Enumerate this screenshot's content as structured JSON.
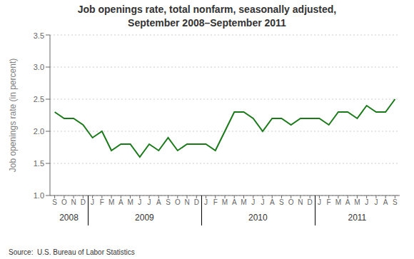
{
  "chart_data": {
    "type": "line",
    "title": "Job openings rate, total nonfarm, seasonally adjusted,\nSeptember 2008–September 2011",
    "y_label": "Job openings rate (in percent)",
    "categories": [
      "S",
      "O",
      "N",
      "D",
      "J",
      "F",
      "M",
      "A",
      "M",
      "J",
      "J",
      "A",
      "S",
      "O",
      "N",
      "D",
      "J",
      "F",
      "M",
      "A",
      "M",
      "J",
      "J",
      "A",
      "S",
      "O",
      "N",
      "D",
      "J",
      "F",
      "M",
      "A",
      "M",
      "J",
      "J",
      "A",
      "S"
    ],
    "x_groups": [
      "2008",
      "2008",
      "2008",
      "2008",
      "2009",
      "2009",
      "2009",
      "2009",
      "2009",
      "2009",
      "2009",
      "2009",
      "2009",
      "2009",
      "2009",
      "2009",
      "2010",
      "2010",
      "2010",
      "2010",
      "2010",
      "2010",
      "2010",
      "2010",
      "2010",
      "2010",
      "2010",
      "2010",
      "2011",
      "2011",
      "2011",
      "2011",
      "2011",
      "2011",
      "2011",
      "2011",
      "2011"
    ],
    "values": [
      2.3,
      2.2,
      2.2,
      2.1,
      1.9,
      2.0,
      1.7,
      1.8,
      1.8,
      1.6,
      1.8,
      1.7,
      1.9,
      1.7,
      1.8,
      1.8,
      1.8,
      1.7,
      2.0,
      2.3,
      2.3,
      2.2,
      2.0,
      2.2,
      2.2,
      2.1,
      2.2,
      2.2,
      2.2,
      2.1,
      2.3,
      2.3,
      2.2,
      2.4,
      2.3,
      2.3,
      2.5
    ],
    "color": "#1a7a1a",
    "ylim": [
      1.0,
      3.5
    ],
    "yticks": [
      {
        "value": 1.0,
        "label": "1.0"
      },
      1.5,
      {
        "value": 2.0,
        "label": "2.0"
      },
      2.5,
      {
        "value": 3.0,
        "label": "3.0"
      },
      3.5
    ],
    "grid": true,
    "annotations": [
      "Source:  U.S. Bureau of Labor Statistics"
    ]
  }
}
